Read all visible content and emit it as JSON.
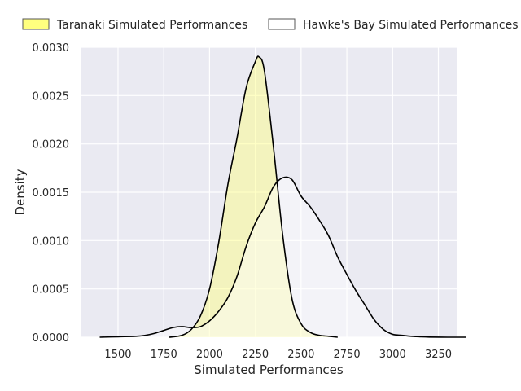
{
  "chart_data": {
    "type": "area",
    "xlabel": "Simulated Performances",
    "ylabel": "Density",
    "xlim": [
      1300,
      3350
    ],
    "ylim": [
      0,
      0.003
    ],
    "xticks": [
      1500,
      1750,
      2000,
      2250,
      2500,
      2750,
      3000,
      3250
    ],
    "yticks": [
      "0.0000",
      "0.0005",
      "0.0010",
      "0.0015",
      "0.0020",
      "0.0025",
      "0.0030"
    ],
    "ytick_values": [
      0,
      0.0005,
      0.001,
      0.0015,
      0.002,
      0.0025,
      0.003
    ],
    "grid": true,
    "legend_position": "top",
    "background": "#eaeaf2",
    "series": [
      {
        "name": "Taranaki Simulated Performances",
        "fill": "#ffff7f",
        "fill_opacity": 0.45,
        "legend_fill": "#ffff7f",
        "x": [
          1780,
          1850,
          1900,
          1950,
          2000,
          2050,
          2100,
          2150,
          2200,
          2250,
          2270,
          2300,
          2350,
          2400,
          2450,
          2500,
          2550,
          2600,
          2650,
          2700
        ],
        "y": [
          0,
          2e-05,
          8e-05,
          0.00022,
          0.0005,
          0.00098,
          0.00158,
          0.00206,
          0.00258,
          0.00285,
          0.0029,
          0.00275,
          0.00195,
          0.00105,
          0.0004,
          0.00014,
          5e-05,
          2e-05,
          1e-05,
          0
        ]
      },
      {
        "name": "Hawke's Bay Simulated Performances",
        "fill": "#ffffff",
        "fill_opacity": 0.45,
        "legend_fill": "#ffffff",
        "x": [
          1400,
          1500,
          1600,
          1650,
          1700,
          1750,
          1800,
          1850,
          1900,
          1950,
          2000,
          2050,
          2100,
          2150,
          2200,
          2250,
          2300,
          2350,
          2400,
          2450,
          2500,
          2550,
          2600,
          2650,
          2700,
          2750,
          2800,
          2850,
          2900,
          2950,
          3000,
          3050,
          3100,
          3150,
          3200,
          3300,
          3400
        ],
        "y": [
          0,
          5e-06,
          1e-05,
          2e-05,
          4e-05,
          7e-05,
          0.0001,
          0.00011,
          0.0001,
          0.00011,
          0.00017,
          0.00027,
          0.00041,
          0.00063,
          0.00094,
          0.00118,
          0.00135,
          0.00156,
          0.00165,
          0.00163,
          0.00146,
          0.00135,
          0.00121,
          0.00105,
          0.00083,
          0.00065,
          0.00048,
          0.00033,
          0.00018,
          8e-05,
          3e-05,
          2e-05,
          1e-05,
          5e-06,
          2e-06,
          0,
          0
        ]
      }
    ]
  }
}
